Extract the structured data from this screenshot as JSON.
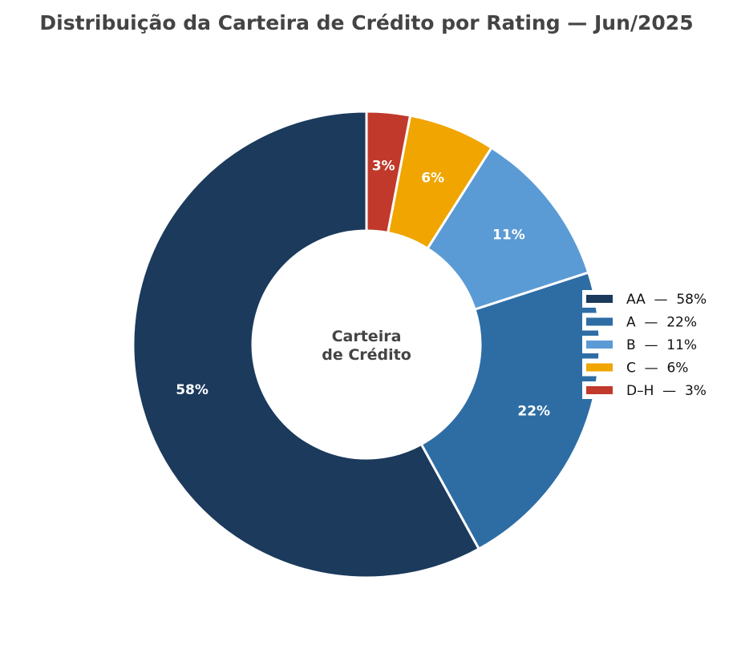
{
  "chart_data": {
    "type": "pie",
    "title": "Distribuição da Carteira de Crédito por Rating — Jun/2025",
    "center_label": [
      "Carteira",
      "de Crédito"
    ],
    "categories": [
      "AA",
      "A",
      "B",
      "C",
      "D–H"
    ],
    "values": [
      58,
      22,
      11,
      6,
      3
    ],
    "data_labels": [
      "58%",
      "22%",
      "11%",
      "6%",
      "3%"
    ],
    "legend": [
      "AA  —  58%",
      "A  —  22%",
      "B  —  11%",
      "C  —  6%",
      "D–H  —  3%"
    ],
    "colors": [
      "#1b3a5c",
      "#2e6da4",
      "#5b9bd5",
      "#f0a500",
      "#c0392b"
    ],
    "legend_position": "right",
    "start_angle_deg": 90,
    "direction": "counterclockwise",
    "donut": true
  }
}
